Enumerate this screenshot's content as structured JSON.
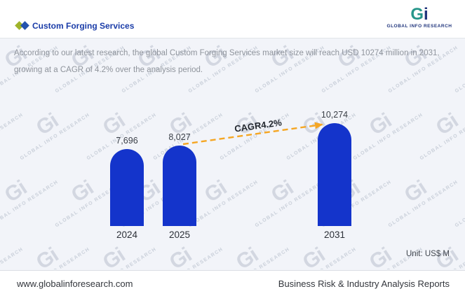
{
  "header": {
    "title": "Custom Forging Services",
    "diamond_colors": [
      "#9fb32a",
      "#2453ae"
    ],
    "logo": {
      "g": "G",
      "i": "i",
      "caption": "GLOBAL INFO RESEARCH"
    }
  },
  "description": {
    "text": "According to our latest research, the global Custom Forging Services market size will reach USD 10274 million in 2031, growing at a CAGR of 4.2% over the analysis period."
  },
  "chart_data": {
    "type": "bar",
    "title": "Custom Forging Services market size",
    "categories": [
      "2024",
      "2025",
      "2031"
    ],
    "values": [
      7696,
      8027,
      10274
    ],
    "value_labels": [
      "7,696",
      "8,027",
      "10,274"
    ],
    "annotation": "CAGR4.2%",
    "unit_label": "Unit: US$ M",
    "ylim": [
      0,
      10800
    ],
    "grid": false,
    "legend": false,
    "bar_color": "#1434cb",
    "arrow_color": "#f5a623"
  },
  "watermark": {
    "glyph": "Gi",
    "caption": "GLOBAL INFO RESEARCH"
  },
  "footer": {
    "left": "www.globalinforesearch.com",
    "right": "Business Risk & Industry Analysis Reports"
  }
}
